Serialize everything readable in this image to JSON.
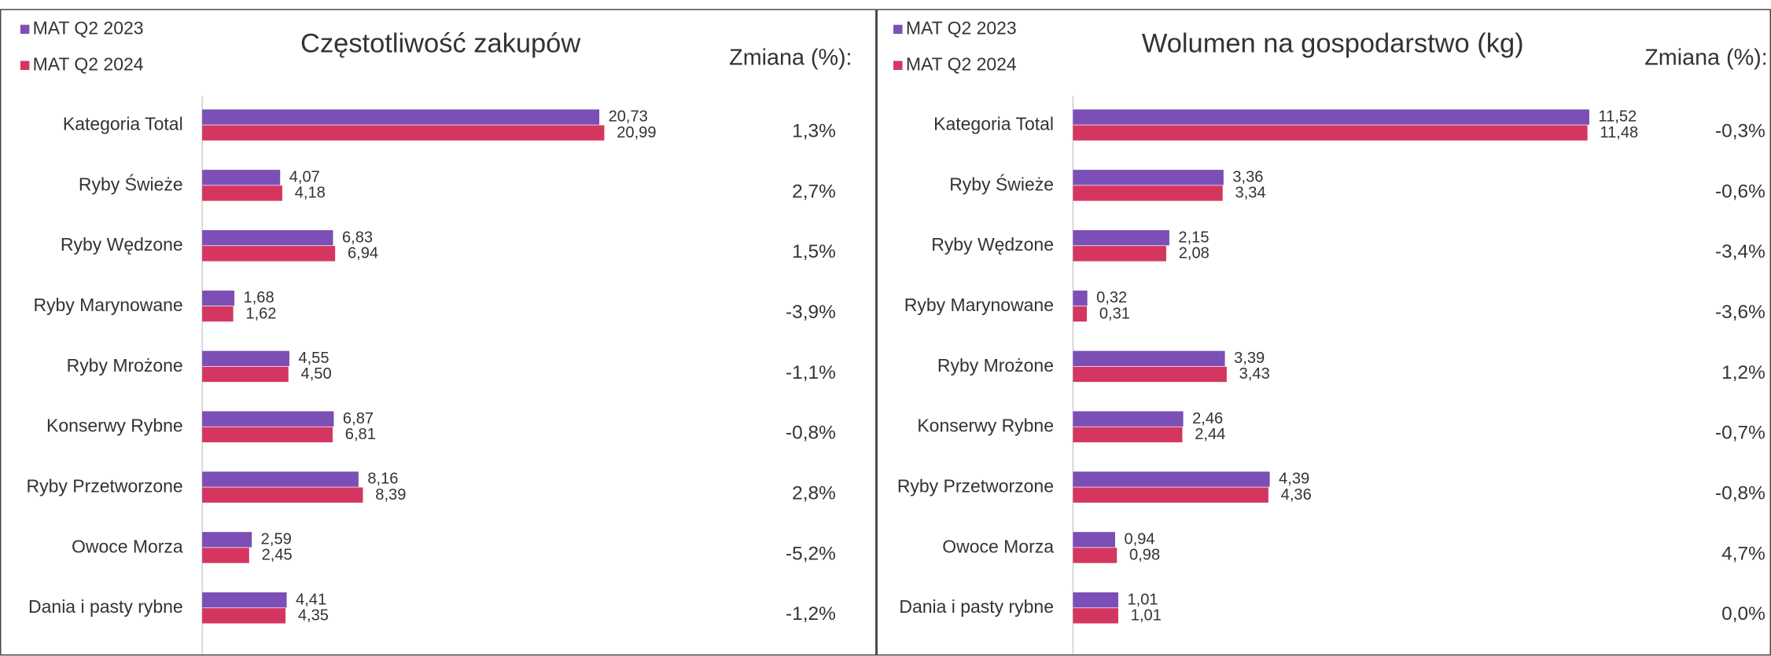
{
  "chart_data": [
    {
      "type": "bar",
      "orientation": "horizontal",
      "title": "Częstotliwość zakupów",
      "categories": [
        "Kategoria Total",
        "Ryby Świeże",
        "Ryby Wędzone",
        "Ryby Marynowane",
        "Ryby Mrożone",
        "Konserwy Rybne",
        "Ryby Przetworzone",
        "Owoce Morza",
        "Dania i pasty rybne"
      ],
      "series": [
        {
          "name": "MAT Q2 2023",
          "color": "#7b4fb5",
          "values": [
            20.73,
            4.07,
            6.83,
            1.68,
            4.55,
            6.87,
            8.16,
            2.59,
            4.41
          ],
          "value_labels": [
            "20,73",
            "4,07",
            "6,83",
            "1,68",
            "4,55",
            "6,87",
            "8,16",
            "2,59",
            "4,41"
          ]
        },
        {
          "name": "MAT Q2 2024",
          "color": "#d4365f",
          "values": [
            20.99,
            4.18,
            6.94,
            1.62,
            4.5,
            6.81,
            8.39,
            2.45,
            4.35
          ],
          "value_labels": [
            "20,99",
            "4,18",
            "6,94",
            "1,62",
            "4,50",
            "6,81",
            "8,39",
            "2,45",
            "4,35"
          ]
        }
      ],
      "xlim": [
        0,
        26
      ],
      "change": {
        "title": "Zmiana (%):",
        "values": [
          1.3,
          2.7,
          1.5,
          -3.9,
          -1.1,
          -0.8,
          2.8,
          -5.2,
          -1.2
        ],
        "value_labels": [
          "1,3%",
          "2,7%",
          "1,5%",
          "-3,9%",
          "-1,1%",
          "-0,8%",
          "2,8%",
          "-5,2%",
          "-1,2%"
        ]
      }
    },
    {
      "type": "bar",
      "orientation": "horizontal",
      "title": "Wolumen na gospodarstwo (kg)",
      "categories": [
        "Kategoria Total",
        "Ryby Świeże",
        "Ryby Wędzone",
        "Ryby Marynowane",
        "Ryby Mrożone",
        "Konserwy Rybne",
        "Ryby Przetworzone",
        "Owoce Morza",
        "Dania i pasty rybne"
      ],
      "series": [
        {
          "name": "MAT Q2 2023",
          "color": "#7b4fb5",
          "values": [
            11.52,
            3.36,
            2.15,
            0.32,
            3.39,
            2.46,
            4.39,
            0.94,
            1.01
          ],
          "value_labels": [
            "11,52",
            "3,36",
            "2,15",
            "0,32",
            "3,39",
            "2,46",
            "4,39",
            "0,94",
            "1,01"
          ]
        },
        {
          "name": "MAT Q2 2024",
          "color": "#d4365f",
          "values": [
            11.48,
            3.34,
            2.08,
            0.31,
            3.43,
            2.44,
            4.36,
            0.98,
            1.01
          ],
          "value_labels": [
            "11,48",
            "3,34",
            "2,08",
            "0,31",
            "3,43",
            "2,44",
            "4,36",
            "0,98",
            "1,01"
          ]
        }
      ],
      "xlim": [
        0,
        12.5
      ],
      "change": {
        "title": "Zmiana (%):",
        "values": [
          -0.3,
          -0.6,
          -3.4,
          -3.6,
          1.2,
          -0.7,
          -0.8,
          4.7,
          0.0
        ],
        "value_labels": [
          "-0,3%",
          "-0,6%",
          "-3,4%",
          "-3,6%",
          "1,2%",
          "-0,7%",
          "-0,8%",
          "4,7%",
          "0,0%"
        ]
      }
    }
  ]
}
